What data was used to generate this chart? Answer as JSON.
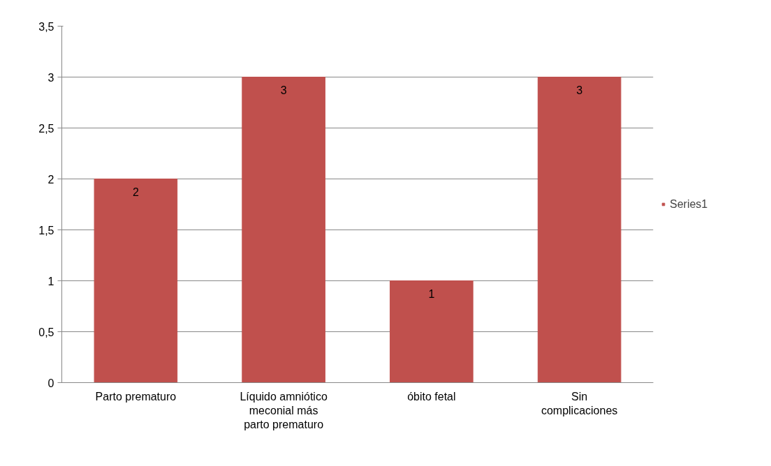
{
  "chart_data": {
    "type": "bar",
    "categories": [
      "Parto prematuro",
      "Líquido amniótico meconial más parto prematuro",
      "óbito fetal",
      "Sin complicaciones"
    ],
    "series": [
      {
        "name": "Series1",
        "color": "#c0504d",
        "values": [
          2,
          3,
          1,
          3
        ]
      }
    ],
    "ylim": [
      0,
      3.5
    ],
    "yticks": [
      {
        "value": 0,
        "label": "0"
      },
      {
        "value": 0.5,
        "label": "0,5"
      },
      {
        "value": 1,
        "label": "1"
      },
      {
        "value": 1.5,
        "label": "1,5"
      },
      {
        "value": 2,
        "label": "2"
      },
      {
        "value": 2.5,
        "label": "2,5"
      },
      {
        "value": 3,
        "label": "3"
      },
      {
        "value": 3.5,
        "label": "3,5"
      }
    ],
    "grid": "y",
    "legend": "right",
    "data_labels": true
  }
}
